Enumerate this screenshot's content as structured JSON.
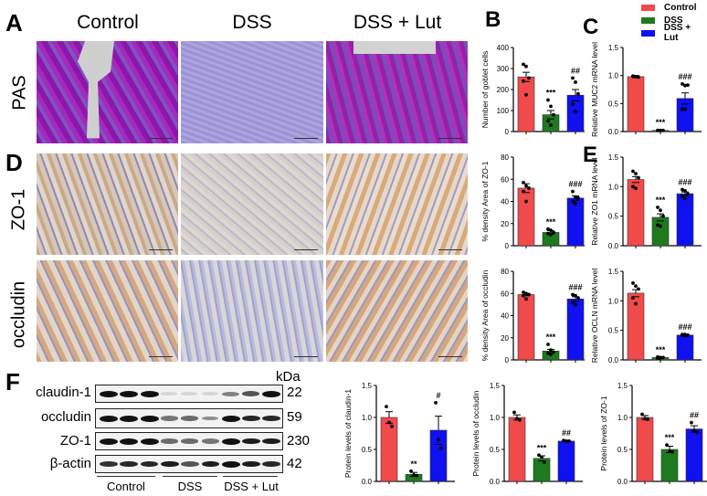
{
  "panels": {
    "A": {
      "letter": "A",
      "columns": [
        "Control",
        "DSS",
        "DSS + Lut"
      ],
      "row_label": "PAS"
    },
    "D": {
      "letter": "D",
      "rows": [
        "ZO-1",
        "occludin"
      ]
    },
    "B": {
      "letter": "B"
    },
    "C": {
      "letter": "C"
    },
    "E": {
      "letter": "E"
    },
    "F": {
      "letter": "F",
      "kda_label": "kDa",
      "blots": [
        {
          "label": "claudin-1",
          "kda": "22"
        },
        {
          "label": "occludin",
          "kda": "59"
        },
        {
          "label": "ZO-1",
          "kda": "230"
        },
        {
          "label": "β-actin",
          "kda": "42"
        }
      ],
      "groups": [
        "Control",
        "DSS",
        "DSS + Lut"
      ]
    }
  },
  "legend": [
    {
      "label": "Control",
      "color": "#f04a4a"
    },
    {
      "label": "DSS",
      "color": "#1e7a1e"
    },
    {
      "label": "DSS + Lut",
      "color": "#1010f0"
    }
  ],
  "colors": {
    "control": "#f04a4a",
    "dss": "#1e7a1e",
    "lut": "#1010f0"
  },
  "chart_data": [
    {
      "id": "B",
      "type": "bar",
      "title": "",
      "xlabel": "",
      "ylabel": "Number of goblet cells",
      "categories": [
        "Control",
        "DSS",
        "DSS + Lut"
      ],
      "values": [
        260,
        80,
        173
      ],
      "errors": [
        22,
        20,
        27
      ],
      "ylim": [
        0,
        400
      ],
      "yticks": [
        0,
        100,
        200,
        300,
        400
      ],
      "annotations": [
        "",
        "***",
        "##"
      ],
      "points": [
        [
          320,
          310,
          255,
          240,
          175
        ],
        [
          150,
          120,
          80,
          50,
          30
        ],
        [
          255,
          235,
          180,
          130,
          95
        ]
      ]
    },
    {
      "id": "C",
      "type": "bar",
      "ylabel": "Relative MUC2 mRNA level",
      "categories": [
        "Control",
        "DSS",
        "DSS + Lut"
      ],
      "values": [
        0.98,
        0.02,
        0.59
      ],
      "errors": [
        0.02,
        0.01,
        0.1
      ],
      "ylim": [
        0,
        1.5
      ],
      "yticks": [
        "0.0",
        "0.5",
        "1.0",
        "1.5"
      ],
      "annotations": [
        "",
        "***",
        "###"
      ],
      "points": [
        [
          0.99,
          0.98,
          0.97,
          0.99,
          0.98
        ],
        [
          0.02,
          0.02,
          0.02,
          0.02,
          0.02
        ],
        [
          0.85,
          0.82,
          0.83,
          0.4,
          0.4
        ]
      ]
    },
    {
      "id": "D-ZO1",
      "type": "bar",
      "ylabel": "% density Area of ZO-1",
      "categories": [
        "Control",
        "DSS",
        "DSS + Lut"
      ],
      "values": [
        52,
        12,
        43
      ],
      "errors": [
        4,
        1.5,
        2
      ],
      "ylim": [
        0,
        80
      ],
      "yticks": [
        0,
        20,
        40,
        60,
        80
      ],
      "annotations": [
        "",
        "***",
        "###"
      ],
      "points": [
        [
          57,
          54,
          52,
          49,
          40
        ],
        [
          15,
          14,
          12,
          11,
          10
        ],
        [
          49,
          44,
          43,
          40,
          38
        ]
      ]
    },
    {
      "id": "E-ZO1",
      "type": "bar",
      "ylabel": "Relative ZO1 mRNA level",
      "categories": [
        "Control",
        "DSS",
        "DSS + Lut"
      ],
      "values": [
        1.12,
        0.48,
        0.88
      ],
      "errors": [
        0.05,
        0.06,
        0.03
      ],
      "ylim": [
        0,
        1.5
      ],
      "yticks": [
        "0.0",
        "0.5",
        "1.0",
        "1.5"
      ],
      "annotations": [
        "",
        "***",
        "###"
      ],
      "points": [
        [
          1.26,
          1.22,
          1.15,
          1.0,
          0.97
        ],
        [
          0.65,
          0.6,
          0.5,
          0.35,
          0.33
        ],
        [
          0.95,
          0.93,
          0.88,
          0.84,
          0.8
        ]
      ]
    },
    {
      "id": "D-occludin",
      "type": "bar",
      "ylabel": "% density Area of occludin",
      "categories": [
        "Control",
        "DSS",
        "DSS + Lut"
      ],
      "values": [
        59,
        8,
        55
      ],
      "errors": [
        1,
        1.5,
        2
      ],
      "ylim": [
        0,
        80
      ],
      "yticks": [
        0,
        20,
        40,
        60,
        80
      ],
      "annotations": [
        "",
        "***",
        "###"
      ],
      "points": [
        [
          61,
          60,
          59,
          58,
          55
        ],
        [
          14,
          9,
          7,
          6,
          5
        ],
        [
          59,
          58,
          56,
          52,
          50
        ]
      ]
    },
    {
      "id": "E-OCLN",
      "type": "bar",
      "ylabel": "Relative OCLN mRNA level",
      "categories": [
        "Control",
        "DSS",
        "DSS + Lut"
      ],
      "values": [
        1.13,
        0.04,
        0.42
      ],
      "errors": [
        0.06,
        0.01,
        0.01
      ],
      "ylim": [
        0,
        1.5
      ],
      "yticks": [
        "0.0",
        "0.5",
        "1.0",
        "1.5"
      ],
      "annotations": [
        "",
        "***",
        "###"
      ],
      "points": [
        [
          1.3,
          1.25,
          1.2,
          1.05,
          0.95
        ],
        [
          0.05,
          0.04,
          0.04,
          0.03,
          0.03
        ],
        [
          0.43,
          0.43,
          0.42,
          0.42,
          0.41
        ]
      ]
    },
    {
      "id": "F-claudin1",
      "type": "bar",
      "ylabel": "Protein levels of claudin-1",
      "categories": [
        "Control",
        "DSS",
        "DSS + Lut"
      ],
      "values": [
        1.0,
        0.11,
        0.8
      ],
      "errors": [
        0.09,
        0.03,
        0.22
      ],
      "ylim": [
        0,
        1.5
      ],
      "yticks": [
        "0.0",
        "0.5",
        "1.0",
        "1.5"
      ],
      "annotations": [
        "",
        "**",
        "#"
      ],
      "points": [
        [
          1.17,
          0.92,
          0.86
        ],
        [
          0.16,
          0.1,
          0.09
        ],
        [
          1.23,
          0.65,
          0.52
        ]
      ]
    },
    {
      "id": "F-occludin",
      "type": "bar",
      "ylabel": "Protein levels of occludin",
      "categories": [
        "Control",
        "DSS",
        "DSS + Lut"
      ],
      "values": [
        1.0,
        0.36,
        0.63
      ],
      "errors": [
        0.04,
        0.04,
        0.01
      ],
      "ylim": [
        0,
        1.5
      ],
      "yticks": [
        "0.0",
        "0.5",
        "1.0",
        "1.5"
      ],
      "annotations": [
        "",
        "***",
        "##"
      ],
      "points": [
        [
          1.08,
          0.98,
          0.96
        ],
        [
          0.41,
          0.38,
          0.3
        ],
        [
          0.64,
          0.63,
          0.63
        ]
      ]
    },
    {
      "id": "F-ZO1",
      "type": "bar",
      "ylabel": "Protein levels of ZO-1",
      "categories": [
        "Control",
        "DSS",
        "DSS + Lut"
      ],
      "values": [
        1.0,
        0.5,
        0.82
      ],
      "errors": [
        0.03,
        0.05,
        0.05
      ],
      "ylim": [
        0,
        1.5
      ],
      "yticks": [
        "0.0",
        "0.5",
        "1.0",
        "1.5"
      ],
      "annotations": [
        "",
        "***",
        "##"
      ],
      "points": [
        [
          1.05,
          0.98,
          0.97
        ],
        [
          0.57,
          0.47,
          0.46
        ],
        [
          0.92,
          0.79,
          0.77
        ]
      ]
    }
  ]
}
